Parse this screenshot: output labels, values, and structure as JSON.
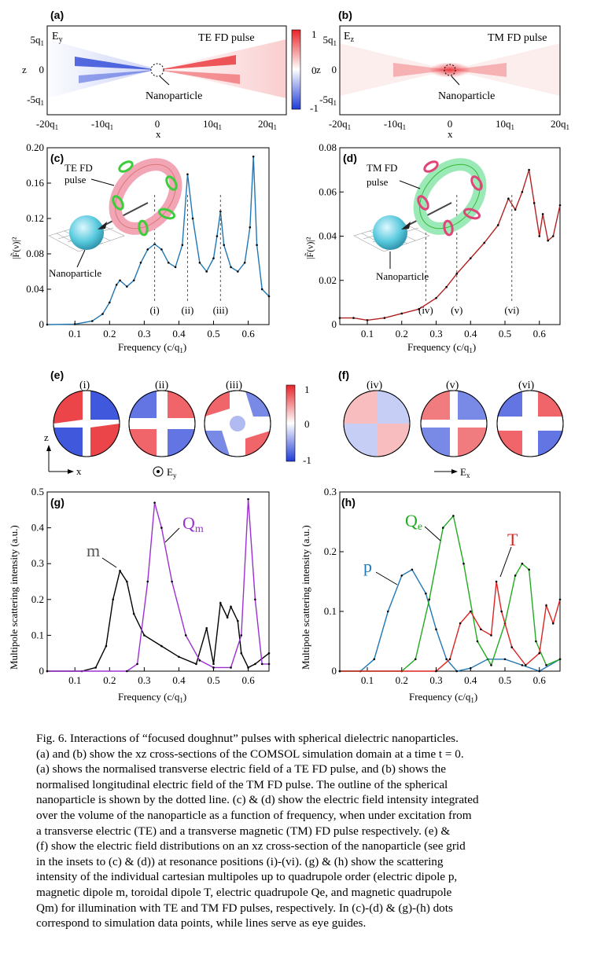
{
  "figure": {
    "panels": {
      "a": {
        "letter": "(a)",
        "field": "Ey",
        "title": "TE FD pulse",
        "label": "Nanoparticle",
        "x_ticks": [
          "-20q1",
          "-10q1",
          "0",
          "10q1",
          "20q1"
        ],
        "z_ticks": [
          "5q1",
          "0",
          "-5q1"
        ],
        "xlabel": "x",
        "zlabel": "z",
        "colorbar": [
          "1",
          "0",
          "-1"
        ]
      },
      "b": {
        "letter": "(b)",
        "field": "Ez",
        "title": "TM FD pulse",
        "label": "Nanoparticle",
        "x_ticks": [
          "-20q1",
          "-10q1",
          "0",
          "10q1",
          "20q1"
        ],
        "z_ticks": [
          "5q1",
          "0",
          "-5q1"
        ],
        "xlabel": "x",
        "zlabel": "z"
      },
      "c": {
        "letter": "(c)",
        "inset_title": "TE FD\npulse",
        "inset_label": "Nanoparticle",
        "markers": [
          "(i)",
          "(ii)",
          "(iii)"
        ],
        "ylabel": "|F̃(ν)|²",
        "xlabel": "Frequency (c/q1)"
      },
      "d": {
        "letter": "(d)",
        "inset_title": "TM FD\npulse",
        "inset_label": "Nanoparticle",
        "markers": [
          "(iv)",
          "(v)",
          "(vi)"
        ],
        "ylabel": "|F̃(ν)|²",
        "xlabel": "Frequency (c/q1)"
      },
      "e": {
        "letter": "(e)",
        "labels": [
          "(i)",
          "(ii)",
          "(iii)"
        ],
        "axis_z": "z",
        "axis_x": "x",
        "field": "Ey",
        "colorbar": [
          "1",
          "0",
          "-1"
        ]
      },
      "f": {
        "letter": "(f)",
        "labels": [
          "(iv)",
          "(v)",
          "(vi)"
        ],
        "field": "Ex"
      },
      "g": {
        "letter": "(g)",
        "ylabel": "Multipole scattering intensity (a.u.)",
        "xlabel": "Frequency (c/q1)",
        "label_m": "m",
        "label_Qm": "Qm"
      },
      "h": {
        "letter": "(h)",
        "ylabel": "Multipole scattering intensity (a.u.)",
        "xlabel": "Frequency (c/q1)",
        "label_p": "p",
        "label_Qe": "Qe",
        "label_T": "T"
      }
    },
    "colors": {
      "te_line": "#1f77b4",
      "tm_line": "#b22222",
      "m": "#000000",
      "Qm": "#9b30d0",
      "p": "#1f77b4",
      "Qe": "#22aa22",
      "T": "#dd2222",
      "pos": "#e8242a",
      "neg": "#1f3bd6"
    }
  },
  "chart_data": [
    {
      "panel": "c",
      "type": "line",
      "xlim": [
        0.02,
        0.66
      ],
      "ylim": [
        0,
        0.2
      ],
      "x_ticks": [
        0.1,
        0.2,
        0.3,
        0.4,
        0.5,
        0.6
      ],
      "y_ticks": [
        0,
        0.04,
        0.08,
        0.12,
        0.16,
        0.2
      ],
      "y_tick_labels": [
        "0",
        "0.04",
        "0.08",
        "0.12",
        "0.16",
        "0.20"
      ],
      "series": [
        {
          "x": [
            0.02,
            0.1,
            0.15,
            0.18,
            0.2,
            0.22,
            0.23,
            0.25,
            0.27,
            0.29,
            0.31,
            0.33,
            0.35,
            0.37,
            0.39,
            0.41,
            0.425,
            0.44,
            0.46,
            0.48,
            0.5,
            0.51,
            0.52,
            0.53,
            0.55,
            0.57,
            0.59,
            0.605,
            0.615,
            0.625,
            0.64,
            0.66
          ],
          "y": [
            0,
            0.0005,
            0.004,
            0.012,
            0.025,
            0.045,
            0.05,
            0.043,
            0.05,
            0.07,
            0.085,
            0.091,
            0.085,
            0.07,
            0.065,
            0.09,
            0.17,
            0.12,
            0.07,
            0.06,
            0.075,
            0.1,
            0.128,
            0.09,
            0.065,
            0.06,
            0.07,
            0.11,
            0.19,
            0.09,
            0.04,
            0.032
          ]
        }
      ],
      "markers": [
        {
          "label": "(i)",
          "x": 0.33
        },
        {
          "label": "(ii)",
          "x": 0.425
        },
        {
          "label": "(iii)",
          "x": 0.52
        }
      ]
    },
    {
      "panel": "d",
      "type": "line",
      "xlim": [
        0.02,
        0.66
      ],
      "ylim": [
        0,
        0.08
      ],
      "x_ticks": [
        0.1,
        0.2,
        0.3,
        0.4,
        0.5,
        0.6
      ],
      "y_ticks": [
        0,
        0.02,
        0.04,
        0.06,
        0.08
      ],
      "y_tick_labels": [
        "0",
        "0.02",
        "0.04",
        "0.06",
        "0.08"
      ],
      "series": [
        {
          "x": [
            0.02,
            0.06,
            0.1,
            0.15,
            0.2,
            0.25,
            0.3,
            0.33,
            0.36,
            0.4,
            0.44,
            0.48,
            0.51,
            0.53,
            0.55,
            0.57,
            0.585,
            0.6,
            0.61,
            0.625,
            0.64,
            0.66
          ],
          "y": [
            0.003,
            0.003,
            0.002,
            0.003,
            0.005,
            0.007,
            0.012,
            0.017,
            0.023,
            0.03,
            0.037,
            0.045,
            0.057,
            0.052,
            0.06,
            0.07,
            0.055,
            0.04,
            0.05,
            0.038,
            0.04,
            0.054
          ]
        }
      ],
      "markers": [
        {
          "label": "(iv)",
          "x": 0.27
        },
        {
          "label": "(v)",
          "x": 0.36
        },
        {
          "label": "(vi)",
          "x": 0.52
        }
      ]
    },
    {
      "panel": "g",
      "type": "line",
      "xlim": [
        0.02,
        0.66
      ],
      "ylim": [
        0,
        0.5
      ],
      "x_ticks": [
        0.1,
        0.2,
        0.3,
        0.4,
        0.5,
        0.6
      ],
      "y_ticks": [
        0,
        0.1,
        0.2,
        0.3,
        0.4,
        0.5
      ],
      "y_tick_labels": [
        "0",
        "0.1",
        "0.2",
        "0.3",
        "0.4",
        "0.5"
      ],
      "series": [
        {
          "name": "m",
          "x": [
            0.02,
            0.12,
            0.16,
            0.19,
            0.21,
            0.23,
            0.25,
            0.27,
            0.3,
            0.35,
            0.4,
            0.45,
            0.48,
            0.5,
            0.52,
            0.54,
            0.55,
            0.57,
            0.58,
            0.6,
            0.62,
            0.66
          ],
          "y": [
            0,
            0,
            0.01,
            0.07,
            0.2,
            0.28,
            0.25,
            0.16,
            0.1,
            0.07,
            0.04,
            0.02,
            0.12,
            0.02,
            0.19,
            0.15,
            0.18,
            0.14,
            0.05,
            0.01,
            0.02,
            0.05
          ]
        },
        {
          "name": "Qm",
          "x": [
            0.02,
            0.25,
            0.28,
            0.31,
            0.33,
            0.35,
            0.38,
            0.42,
            0.46,
            0.5,
            0.55,
            0.58,
            0.6,
            0.62,
            0.64,
            0.66
          ],
          "y": [
            0,
            0,
            0.02,
            0.25,
            0.47,
            0.4,
            0.25,
            0.1,
            0.03,
            0.01,
            0.01,
            0.1,
            0.48,
            0.2,
            0.02,
            0.02
          ]
        }
      ]
    },
    {
      "panel": "h",
      "type": "line",
      "xlim": [
        0.02,
        0.66
      ],
      "ylim": [
        0,
        0.3
      ],
      "x_ticks": [
        0.1,
        0.2,
        0.3,
        0.4,
        0.5,
        0.6
      ],
      "y_ticks": [
        0,
        0.1,
        0.2,
        0.3
      ],
      "y_tick_labels": [
        "0",
        "0.1",
        "0.2",
        "0.3"
      ],
      "series": [
        {
          "name": "p",
          "x": [
            0.02,
            0.08,
            0.12,
            0.16,
            0.2,
            0.23,
            0.27,
            0.3,
            0.33,
            0.36,
            0.4,
            0.45,
            0.5,
            0.55,
            0.6,
            0.66
          ],
          "y": [
            0,
            0,
            0.02,
            0.1,
            0.16,
            0.17,
            0.13,
            0.07,
            0.02,
            0,
            0.005,
            0.02,
            0.02,
            0.01,
            0,
            0.02
          ]
        },
        {
          "name": "Qe",
          "x": [
            0.02,
            0.2,
            0.24,
            0.28,
            0.32,
            0.35,
            0.38,
            0.42,
            0.46,
            0.5,
            0.53,
            0.55,
            0.57,
            0.59,
            0.62,
            0.66
          ],
          "y": [
            0,
            0,
            0.02,
            0.12,
            0.24,
            0.26,
            0.18,
            0.05,
            0.01,
            0.08,
            0.16,
            0.18,
            0.17,
            0.05,
            0.01,
            0.02
          ]
        },
        {
          "name": "T",
          "x": [
            0.02,
            0.3,
            0.34,
            0.37,
            0.4,
            0.43,
            0.46,
            0.475,
            0.49,
            0.52,
            0.56,
            0.6,
            0.62,
            0.64,
            0.66
          ],
          "y": [
            0,
            0,
            0.02,
            0.08,
            0.1,
            0.07,
            0.06,
            0.15,
            0.1,
            0.04,
            0.01,
            0.03,
            0.11,
            0.08,
            0.12
          ]
        }
      ]
    }
  ],
  "caption": {
    "lines": [
      "Fig. 6. Interactions of “focused doughnut” pulses with spherical dielectric nanoparticles.",
      "(a) and (b) show the xz cross-sections of the COMSOL simulation domain at a time t = 0.",
      "(a) shows the normalised transverse electric field of a TE FD pulse, and (b) shows the",
      "normalised longitudinal electric field of the TM FD pulse. The outline of the spherical",
      "nanoparticle is shown by the dotted line. (c) & (d) show the electric field intensity integrated",
      "over the volume of the nanoparticle as a function of frequency, when under excitation from",
      "a transverse electric (TE) and a transverse magnetic (TM) FD pulse respectively. (e) &",
      "(f) show the electric field distributions on an xz cross-section of the nanoparticle (see grid",
      "in the insets to (c) & (d)) at resonance positions (i)-(vi). (g) & (h) show the scattering",
      "intensity of the individual cartesian multipoles up to quadrupole order (electric dipole p,",
      "magnetic dipole m, toroidal dipole T, electric quadrupole Qe, and magnetic quadrupole",
      "Qm) for illumination with TE and TM FD pulses, respectively. In (c)-(d) & (g)-(h) dots",
      "correspond to simulation data points, while lines serve as eye guides."
    ]
  }
}
